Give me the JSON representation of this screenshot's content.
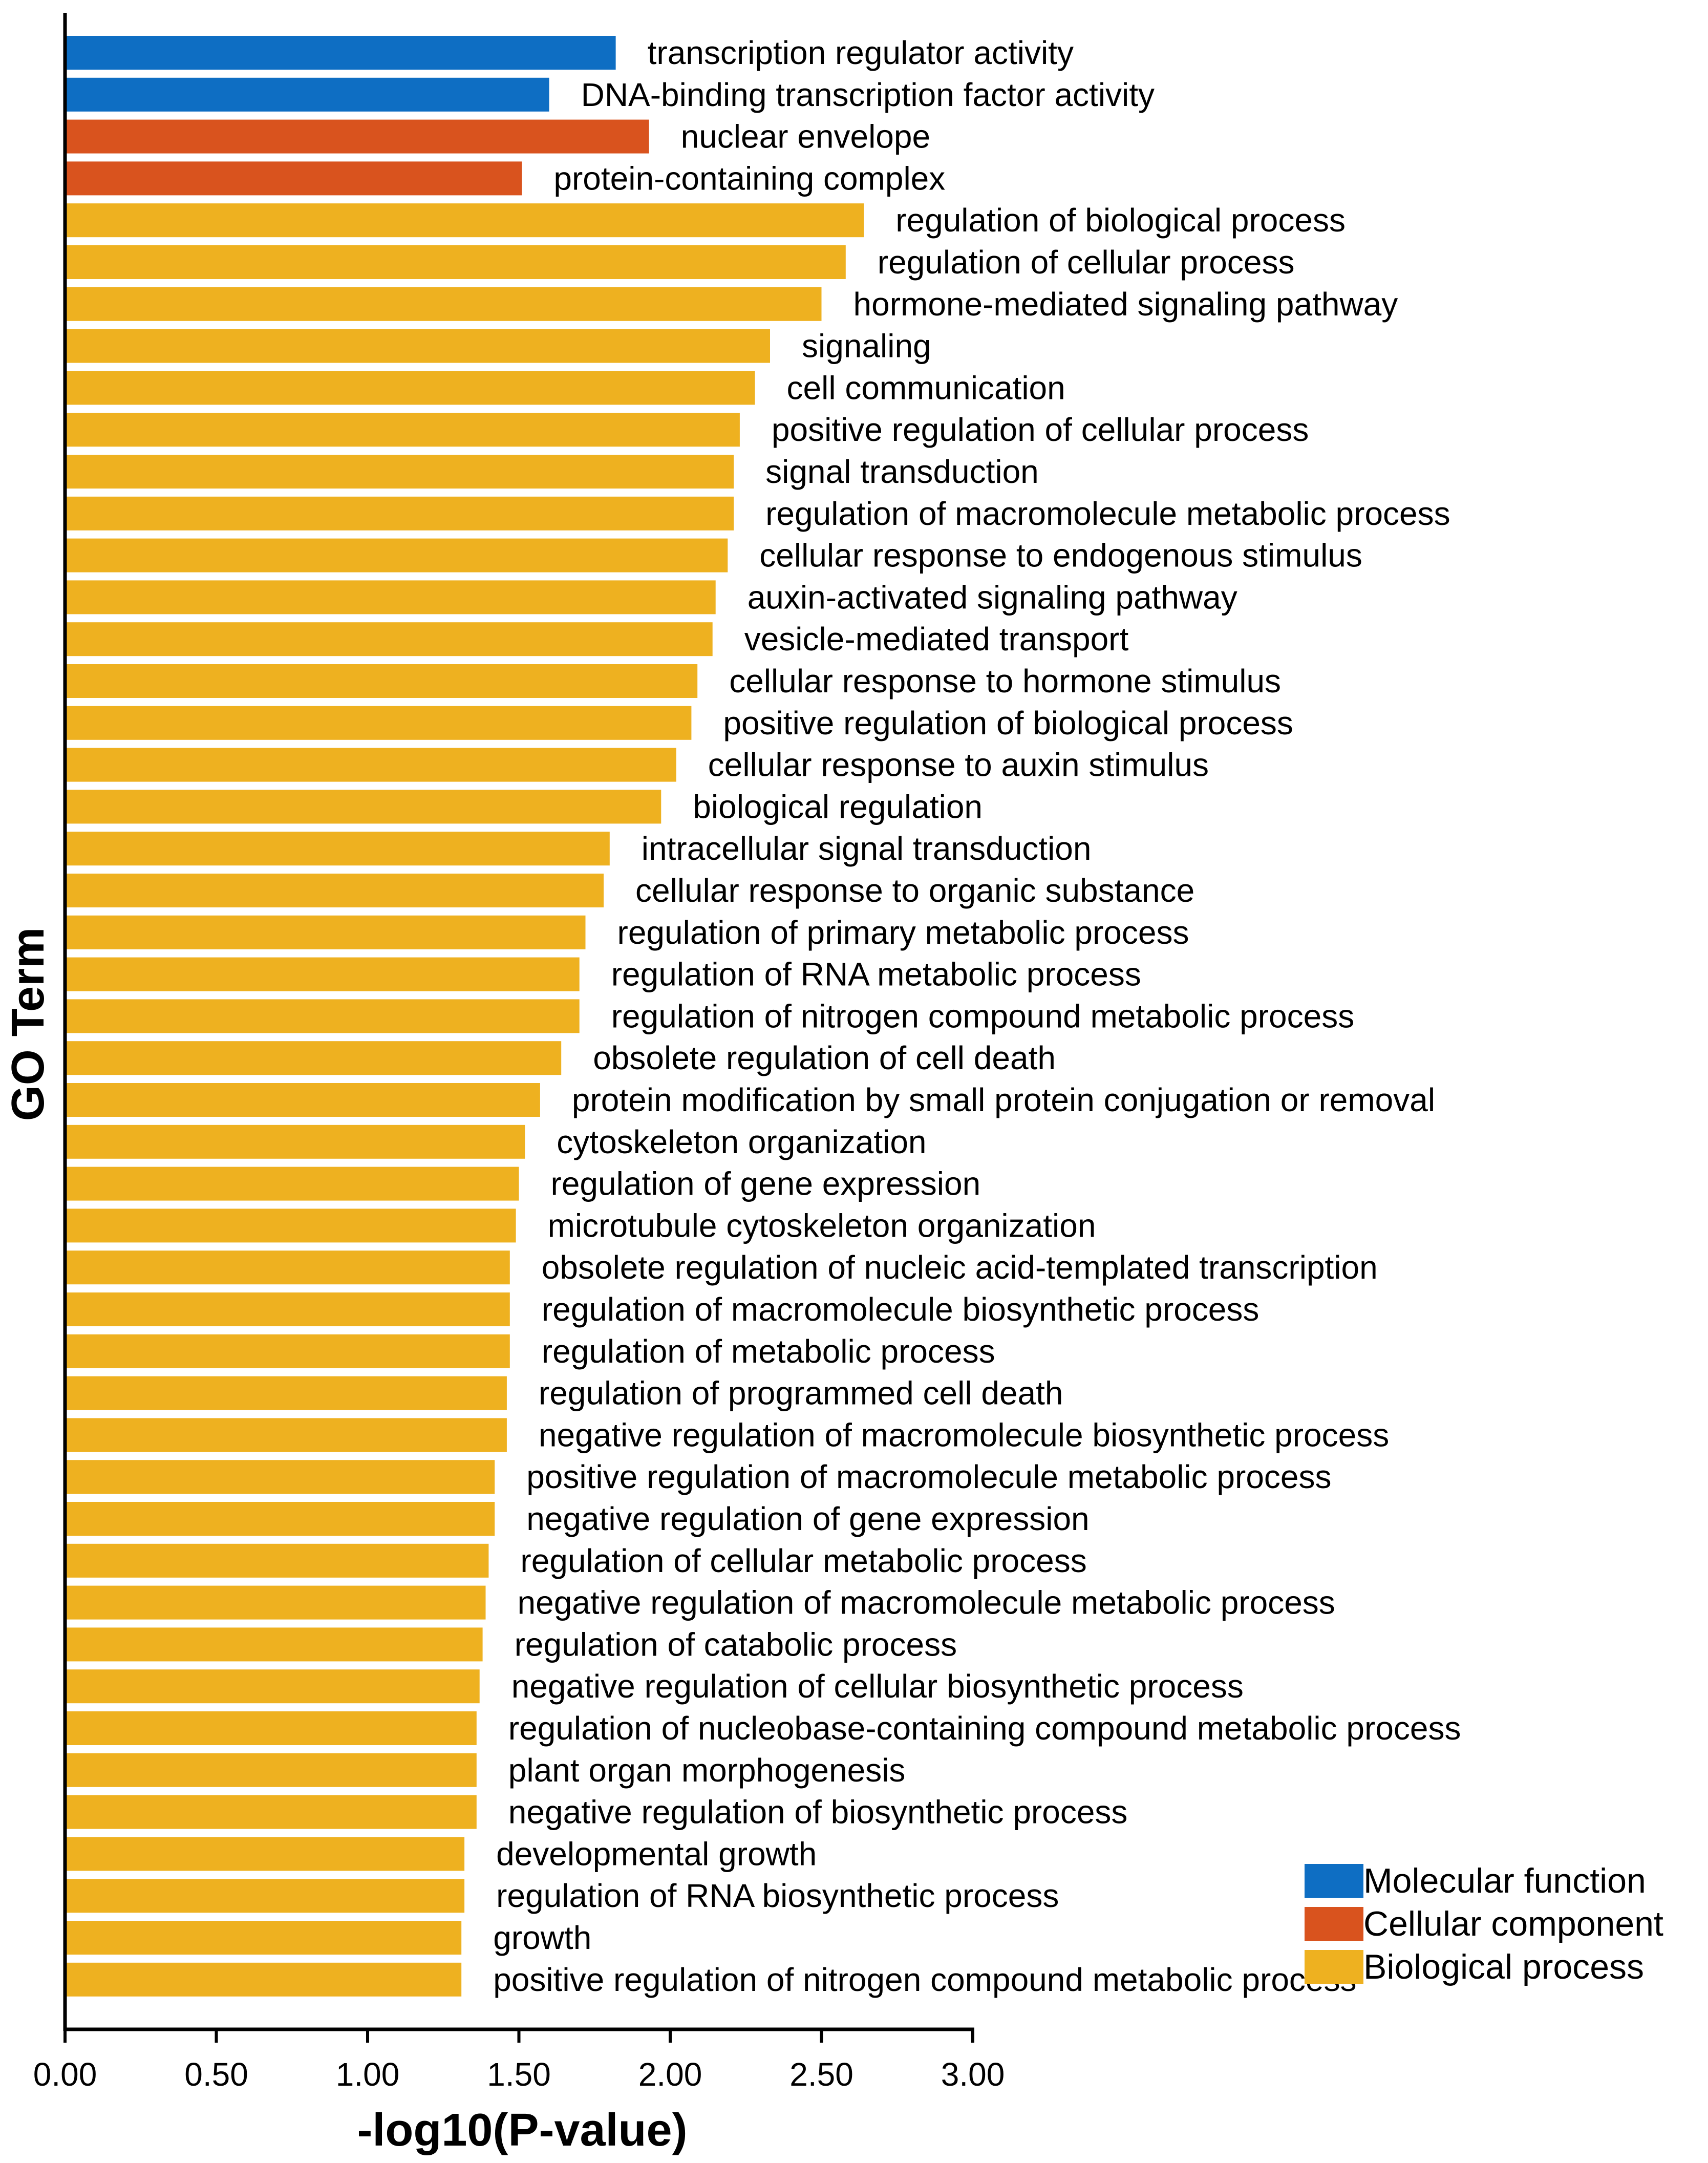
{
  "chart_data": {
    "type": "bar",
    "orientation": "horizontal",
    "xlabel": "-log10(P-value)",
    "ylabel": "GO Term",
    "xlim": [
      0,
      3
    ],
    "xticks": [
      "0.00",
      "0.50",
      "1.00",
      "1.50",
      "2.00",
      "2.50",
      "3.00"
    ],
    "xtick_values": [
      0,
      0.5,
      1,
      1.5,
      2,
      2.5,
      3
    ],
    "legend_position": "bottom-right",
    "legend": [
      {
        "label": "Molecular function",
        "color": "#0E6EC3"
      },
      {
        "label": "Cellular component",
        "color": "#D9531E"
      },
      {
        "label": "Biological process",
        "color": "#EEB120"
      }
    ],
    "bars": [
      {
        "term": "transcription regulator activity",
        "value": 1.82,
        "category": 0
      },
      {
        "term": "DNA-binding transcription factor activity",
        "value": 1.6,
        "category": 0
      },
      {
        "term": "nuclear envelope",
        "value": 1.93,
        "category": 1
      },
      {
        "term": "protein-containing complex",
        "value": 1.51,
        "category": 1
      },
      {
        "term": "regulation of biological process",
        "value": 2.64,
        "category": 2
      },
      {
        "term": "regulation of cellular process",
        "value": 2.58,
        "category": 2
      },
      {
        "term": "hormone-mediated signaling pathway",
        "value": 2.5,
        "category": 2
      },
      {
        "term": "signaling",
        "value": 2.33,
        "category": 2
      },
      {
        "term": "cell communication",
        "value": 2.28,
        "category": 2
      },
      {
        "term": "positive regulation of cellular process",
        "value": 2.23,
        "category": 2
      },
      {
        "term": "signal transduction",
        "value": 2.21,
        "category": 2
      },
      {
        "term": "regulation of macromolecule metabolic process",
        "value": 2.21,
        "category": 2
      },
      {
        "term": "cellular response to endogenous stimulus",
        "value": 2.19,
        "category": 2
      },
      {
        "term": "auxin-activated signaling pathway",
        "value": 2.15,
        "category": 2
      },
      {
        "term": "vesicle-mediated transport",
        "value": 2.14,
        "category": 2
      },
      {
        "term": "cellular response to hormone stimulus",
        "value": 2.09,
        "category": 2
      },
      {
        "term": "positive regulation of biological process",
        "value": 2.07,
        "category": 2
      },
      {
        "term": "cellular response to auxin stimulus",
        "value": 2.02,
        "category": 2
      },
      {
        "term": "biological regulation",
        "value": 1.97,
        "category": 2
      },
      {
        "term": "intracellular signal transduction",
        "value": 1.8,
        "category": 2
      },
      {
        "term": "cellular response to organic substance",
        "value": 1.78,
        "category": 2
      },
      {
        "term": "regulation of primary metabolic process",
        "value": 1.72,
        "category": 2
      },
      {
        "term": "regulation of RNA metabolic process",
        "value": 1.7,
        "category": 2
      },
      {
        "term": "regulation of nitrogen compound metabolic process",
        "value": 1.7,
        "category": 2
      },
      {
        "term": "obsolete regulation of cell death",
        "value": 1.64,
        "category": 2
      },
      {
        "term": "protein modification by small protein conjugation or removal",
        "value": 1.57,
        "category": 2
      },
      {
        "term": "cytoskeleton organization",
        "value": 1.52,
        "category": 2
      },
      {
        "term": "regulation of gene expression",
        "value": 1.5,
        "category": 2
      },
      {
        "term": "microtubule cytoskeleton organization",
        "value": 1.49,
        "category": 2
      },
      {
        "term": "obsolete regulation of nucleic acid-templated transcription",
        "value": 1.47,
        "category": 2
      },
      {
        "term": "regulation of macromolecule biosynthetic process",
        "value": 1.47,
        "category": 2
      },
      {
        "term": "regulation of metabolic process",
        "value": 1.47,
        "category": 2
      },
      {
        "term": "regulation of programmed cell death",
        "value": 1.46,
        "category": 2
      },
      {
        "term": "negative regulation of macromolecule biosynthetic process",
        "value": 1.46,
        "category": 2
      },
      {
        "term": "positive regulation of macromolecule metabolic process",
        "value": 1.42,
        "category": 2
      },
      {
        "term": "negative regulation of gene expression",
        "value": 1.42,
        "category": 2
      },
      {
        "term": "regulation of cellular metabolic process",
        "value": 1.4,
        "category": 2
      },
      {
        "term": "negative regulation of macromolecule metabolic process",
        "value": 1.39,
        "category": 2
      },
      {
        "term": "regulation of catabolic process",
        "value": 1.38,
        "category": 2
      },
      {
        "term": "negative regulation of cellular biosynthetic process",
        "value": 1.37,
        "category": 2
      },
      {
        "term": "regulation of nucleobase-containing compound metabolic process",
        "value": 1.36,
        "category": 2
      },
      {
        "term": "plant organ morphogenesis",
        "value": 1.36,
        "category": 2
      },
      {
        "term": "negative regulation of biosynthetic process",
        "value": 1.36,
        "category": 2
      },
      {
        "term": "developmental growth",
        "value": 1.32,
        "category": 2
      },
      {
        "term": "regulation of RNA biosynthetic process",
        "value": 1.32,
        "category": 2
      },
      {
        "term": "growth",
        "value": 1.31,
        "category": 2
      },
      {
        "term": "positive regulation of nitrogen compound metabolic process",
        "value": 1.31,
        "category": 2
      }
    ]
  }
}
